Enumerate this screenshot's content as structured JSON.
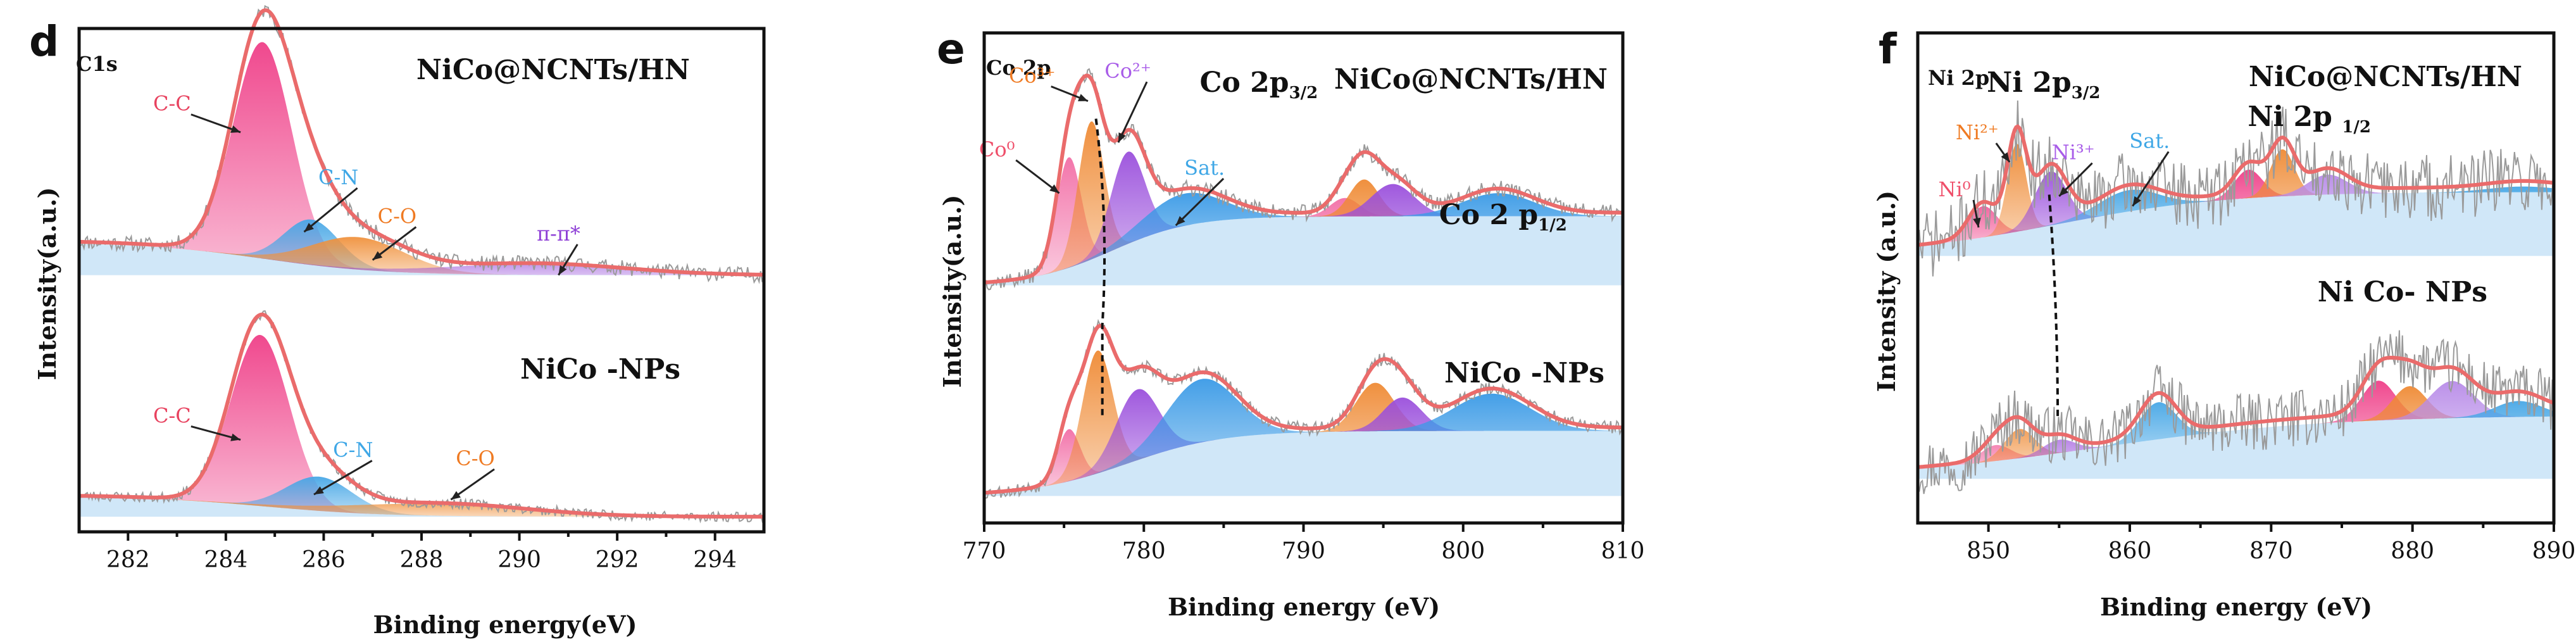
{
  "chart_data": [
    {
      "id": "d",
      "type": "line",
      "panel_letter": "d",
      "corner_label": "C1s",
      "xlabel": "Binding energy(eV)",
      "ylabel": "Intensity(a.u.)",
      "xlim": [
        281,
        295
      ],
      "xticks": [
        282,
        284,
        286,
        288,
        290,
        292,
        294
      ],
      "ylim": [
        0,
        10
      ],
      "spectra": [
        {
          "name": "NiCo@NCNTs/HN",
          "baseline": 5.1,
          "amp": 4.3,
          "envelope_gain": 1.07,
          "noise": 0.035,
          "seed": 11,
          "background": {
            "start": 0.15,
            "end": 0.0,
            "mid": 284.8,
            "width": 1.2
          },
          "components": [
            {
              "label": "C-C",
              "center": 284.75,
              "height": 1.0,
              "width": 0.85,
              "color": "#ef3f88"
            },
            {
              "label": "C-N",
              "center": 285.75,
              "height": 0.21,
              "width": 0.8,
              "color": "#47a7e6"
            },
            {
              "label": "C-O",
              "center": 286.7,
              "height": 0.15,
              "width": 1.35,
              "color": "#f0913c"
            },
            {
              "label": "π-π*",
              "center": 290.3,
              "height": 0.05,
              "width": 2.6,
              "color": "#9349d9"
            }
          ],
          "annotations": [
            {
              "text": "C-C",
              "x": 282.9,
              "y": 0.76,
              "to_x": 284.3,
              "to_y": 0.66,
              "color": "#e8425f"
            },
            {
              "text": "C-N",
              "x": 286.3,
              "y": 0.42,
              "to_x": 285.6,
              "to_y": 0.2,
              "color": "#3fa7e6"
            },
            {
              "text": "C-O",
              "x": 287.5,
              "y": 0.24,
              "to_x": 287.0,
              "to_y": 0.07,
              "color": "#ef7a22"
            },
            {
              "text": "π-π*",
              "x": 290.8,
              "y": 0.16,
              "to_x": 290.8,
              "to_y": 0.0,
              "color": "#8e3fd6"
            }
          ]
        },
        {
          "name": "NiCo -NPs",
          "baseline": 0.3,
          "amp": 3.4,
          "envelope_gain": 1.06,
          "noise": 0.03,
          "seed": 23,
          "background": {
            "start": 0.12,
            "end": 0.0,
            "mid": 284.8,
            "width": 1.2
          },
          "components": [
            {
              "label": "C-C",
              "center": 284.7,
              "height": 1.0,
              "width": 0.85,
              "color": "#ef3f88"
            },
            {
              "label": "C-N",
              "center": 285.9,
              "height": 0.2,
              "width": 0.95,
              "color": "#47a7e6"
            },
            {
              "label": "C-O",
              "center": 288.3,
              "height": 0.07,
              "width": 2.6,
              "color": "#f0913c"
            }
          ],
          "annotations": [
            {
              "text": "C-C",
              "x": 282.9,
              "y": 0.55,
              "to_x": 284.3,
              "to_y": 0.45,
              "color": "#e8425f"
            },
            {
              "text": "C-N",
              "x": 286.6,
              "y": 0.35,
              "to_x": 285.8,
              "to_y": 0.13,
              "color": "#3fa7e6"
            },
            {
              "text": "C-O",
              "x": 289.1,
              "y": 0.3,
              "to_x": 288.6,
              "to_y": 0.1,
              "color": "#ef7a22"
            }
          ]
        }
      ]
    },
    {
      "id": "e",
      "type": "line",
      "panel_letter": "e",
      "corner_label": "Co 2p",
      "xlabel": "Binding energy (eV)",
      "ylabel": "Intensity(a.u.)",
      "xlim": [
        770,
        810
      ],
      "xticks": [
        770,
        780,
        790,
        800,
        810
      ],
      "ylim": [
        0,
        10
      ],
      "spectra": [
        {
          "name": "NiCo@NCNTs/HN",
          "baseline": 4.85,
          "amp": 4.7,
          "envelope_gain": 1.05,
          "noise": 0.035,
          "seed": 37,
          "background": {
            "start": 0.0,
            "end": 0.3,
            "mid": 778,
            "width": 2.5
          },
          "components": [
            {
              "label": "Co⁰",
              "center": 775.3,
              "height": 0.48,
              "width": 1.1,
              "color": "#f26ea6"
            },
            {
              "label": "Co³⁺",
              "center": 776.7,
              "height": 0.6,
              "width": 1.15,
              "color": "#ef8a34"
            },
            {
              "label": "Co²⁺",
              "center": 779.0,
              "height": 0.4,
              "width": 1.5,
              "color": "#9a4fdc"
            },
            {
              "label": "Sat.",
              "center": 782.5,
              "height": 0.14,
              "width": 3.5,
              "color": "#3a9ae6"
            },
            {
              "label": "",
              "center": 792.6,
              "height": 0.08,
              "width": 1.3,
              "color": "#f26ea6"
            },
            {
              "label": "",
              "center": 793.8,
              "height": 0.16,
              "width": 1.3,
              "color": "#ef8a34"
            },
            {
              "label": "",
              "center": 795.6,
              "height": 0.14,
              "width": 1.9,
              "color": "#9a4fdc"
            },
            {
              "label": "",
              "center": 802.2,
              "height": 0.1,
              "width": 3.2,
              "color": "#3a9ae6"
            }
          ],
          "annotations": [
            {
              "text": "Co⁰",
              "x": 770.8,
              "y": 0.56,
              "to_x": 774.7,
              "to_y": 0.4,
              "color": "#ef4f6a"
            },
            {
              "text": "Co³⁺",
              "x": 773.0,
              "y": 0.88,
              "to_x": 776.5,
              "to_y": 0.8,
              "color": "#ef7a22"
            },
            {
              "text": "Co²⁺",
              "x": 779.0,
              "y": 0.9,
              "to_x": 778.4,
              "to_y": 0.62,
              "color": "#a85ce8"
            },
            {
              "text": "Sat.",
              "x": 783.8,
              "y": 0.48,
              "to_x": 782.0,
              "to_y": 0.26,
              "color": "#3fa7e6"
            }
          ]
        },
        {
          "name": "NiCo -NPs",
          "baseline": 0.55,
          "amp": 3.8,
          "envelope_gain": 1.05,
          "noise": 0.035,
          "seed": 53,
          "background": {
            "start": 0.0,
            "end": 0.35,
            "mid": 779,
            "width": 3.0
          },
          "components": [
            {
              "label": "",
              "center": 775.3,
              "height": 0.28,
              "width": 1.0,
              "color": "#f26ea6"
            },
            {
              "label": "",
              "center": 777.1,
              "height": 0.66,
              "width": 1.35,
              "color": "#ef8a34"
            },
            {
              "label": "",
              "center": 779.6,
              "height": 0.38,
              "width": 1.9,
              "color": "#9a4fdc"
            },
            {
              "label": "",
              "center": 783.6,
              "height": 0.34,
              "width": 3.1,
              "color": "#3a9ae6"
            },
            {
              "label": "",
              "center": 794.5,
              "height": 0.26,
              "width": 1.7,
              "color": "#ef8a34"
            },
            {
              "label": "",
              "center": 796.2,
              "height": 0.18,
              "width": 1.7,
              "color": "#9a4fdc"
            },
            {
              "label": "",
              "center": 801.8,
              "height": 0.2,
              "width": 3.4,
              "color": "#3a9ae6"
            }
          ],
          "annotations": []
        }
      ],
      "peak_labels": [
        {
          "main": "Co 2p",
          "sub": "3/2",
          "x": 787.2,
          "y": 8.8
        },
        {
          "main": "Co 2 p",
          "sub": "1/2",
          "x": 802.5,
          "y": 6.1
        }
      ],
      "shift_line": {
        "upper_x": 777.0,
        "upper_y": 8.25,
        "lower_x": 777.4,
        "lower_y": 4.05,
        "bottom_y": 2.2
      }
    },
    {
      "id": "f",
      "type": "line",
      "panel_letter": "f",
      "corner_label": "Ni 2p",
      "xlabel": "Binding energy (eV)",
      "ylabel": "Intensity (a.u.)",
      "xlim": [
        845,
        890
      ],
      "xticks": [
        850,
        860,
        870,
        880,
        890
      ],
      "ylim": [
        0,
        10
      ],
      "spectra": [
        {
          "name": "NiCo@NCNTs/HN",
          "baseline": 5.45,
          "amp": 2.9,
          "envelope_gain": 1.08,
          "noise": 0.24,
          "seed": 71,
          "background": {
            "start": 0.0,
            "end": 0.45,
            "mid": 855,
            "width": 6.0
          },
          "components": [
            {
              "label": "Ni⁰",
              "center": 849.6,
              "height": 0.22,
              "width": 1.4,
              "color": "#ef3f88"
            },
            {
              "label": "Ni²⁺",
              "center": 852.0,
              "height": 0.62,
              "width": 0.95,
              "color": "#ef8a34"
            },
            {
              "label": "Ni³⁺",
              "center": 854.4,
              "height": 0.38,
              "width": 1.6,
              "color": "#9a4fdc"
            },
            {
              "label": "Sat.",
              "center": 859.9,
              "height": 0.15,
              "width": 3.0,
              "color": "#47a7e6"
            },
            {
              "label": "",
              "center": 868.4,
              "height": 0.2,
              "width": 1.4,
              "color": "#ef3f88"
            },
            {
              "label": "",
              "center": 870.8,
              "height": 0.33,
              "width": 1.2,
              "color": "#ef8a34"
            },
            {
              "label": "",
              "center": 874.0,
              "height": 0.14,
              "width": 2.0,
              "color": "#b88be8"
            },
            {
              "label": "",
              "center": 887.8,
              "height": 0.04,
              "width": 3.5,
              "color": "#47a7e6"
            }
          ],
          "annotations": [
            {
              "text": "Ni⁰",
              "x": 847.6,
              "y": 0.42,
              "to_x": 849.3,
              "to_y": 0.2,
              "color": "#ef4f6a"
            },
            {
              "text": "Ni²⁺",
              "x": 849.2,
              "y": 0.82,
              "to_x": 851.5,
              "to_y": 0.66,
              "color": "#ef7a22"
            },
            {
              "text": "Ni³⁺",
              "x": 856.0,
              "y": 0.68,
              "to_x": 855.0,
              "to_y": 0.42,
              "color": "#a85ce8"
            },
            {
              "text": "Sat.",
              "x": 861.4,
              "y": 0.76,
              "to_x": 860.2,
              "to_y": 0.35,
              "color": "#3fa7e6"
            }
          ]
        },
        {
          "name": "Ni Co- NPs",
          "baseline": 0.9,
          "amp": 2.7,
          "envelope_gain": 1.12,
          "noise": 0.22,
          "seed": 97,
          "background": {
            "start": 0.0,
            "end": 0.48,
            "mid": 858,
            "width": 8.0
          },
          "components": [
            {
              "label": "",
              "center": 850.5,
              "height": 0.12,
              "width": 1.5,
              "color": "#ef3f88"
            },
            {
              "label": "",
              "center": 852.2,
              "height": 0.22,
              "width": 1.5,
              "color": "#ef8a34"
            },
            {
              "label": "",
              "center": 855.0,
              "height": 0.1,
              "width": 1.6,
              "color": "#9a4fdc"
            },
            {
              "label": "",
              "center": 862.0,
              "height": 0.28,
              "width": 1.8,
              "color": "#47a7e6"
            },
            {
              "label": "",
              "center": 877.6,
              "height": 0.3,
              "width": 1.7,
              "color": "#ef3f88"
            },
            {
              "label": "",
              "center": 879.8,
              "height": 0.25,
              "width": 1.7,
              "color": "#ef8a34"
            },
            {
              "label": "",
              "center": 882.8,
              "height": 0.28,
              "width": 2.2,
              "color": "#b88be8"
            },
            {
              "label": "",
              "center": 887.5,
              "height": 0.12,
              "width": 2.4,
              "color": "#47a7e6"
            }
          ],
          "annotations": []
        }
      ],
      "peak_labels": [
        {
          "main": "Ni 2p",
          "sub": "3/2",
          "x": 853.9,
          "y": 8.8
        },
        {
          "main": "Ni 2p ",
          "sub": "1/2",
          "x": 872.7,
          "y": 8.1
        }
      ],
      "shift_line": {
        "upper_x": 854.3,
        "upper_y": 6.7,
        "lower_x": 854.9,
        "lower_y": 2.1,
        "bottom_y": 2.1
      }
    }
  ]
}
